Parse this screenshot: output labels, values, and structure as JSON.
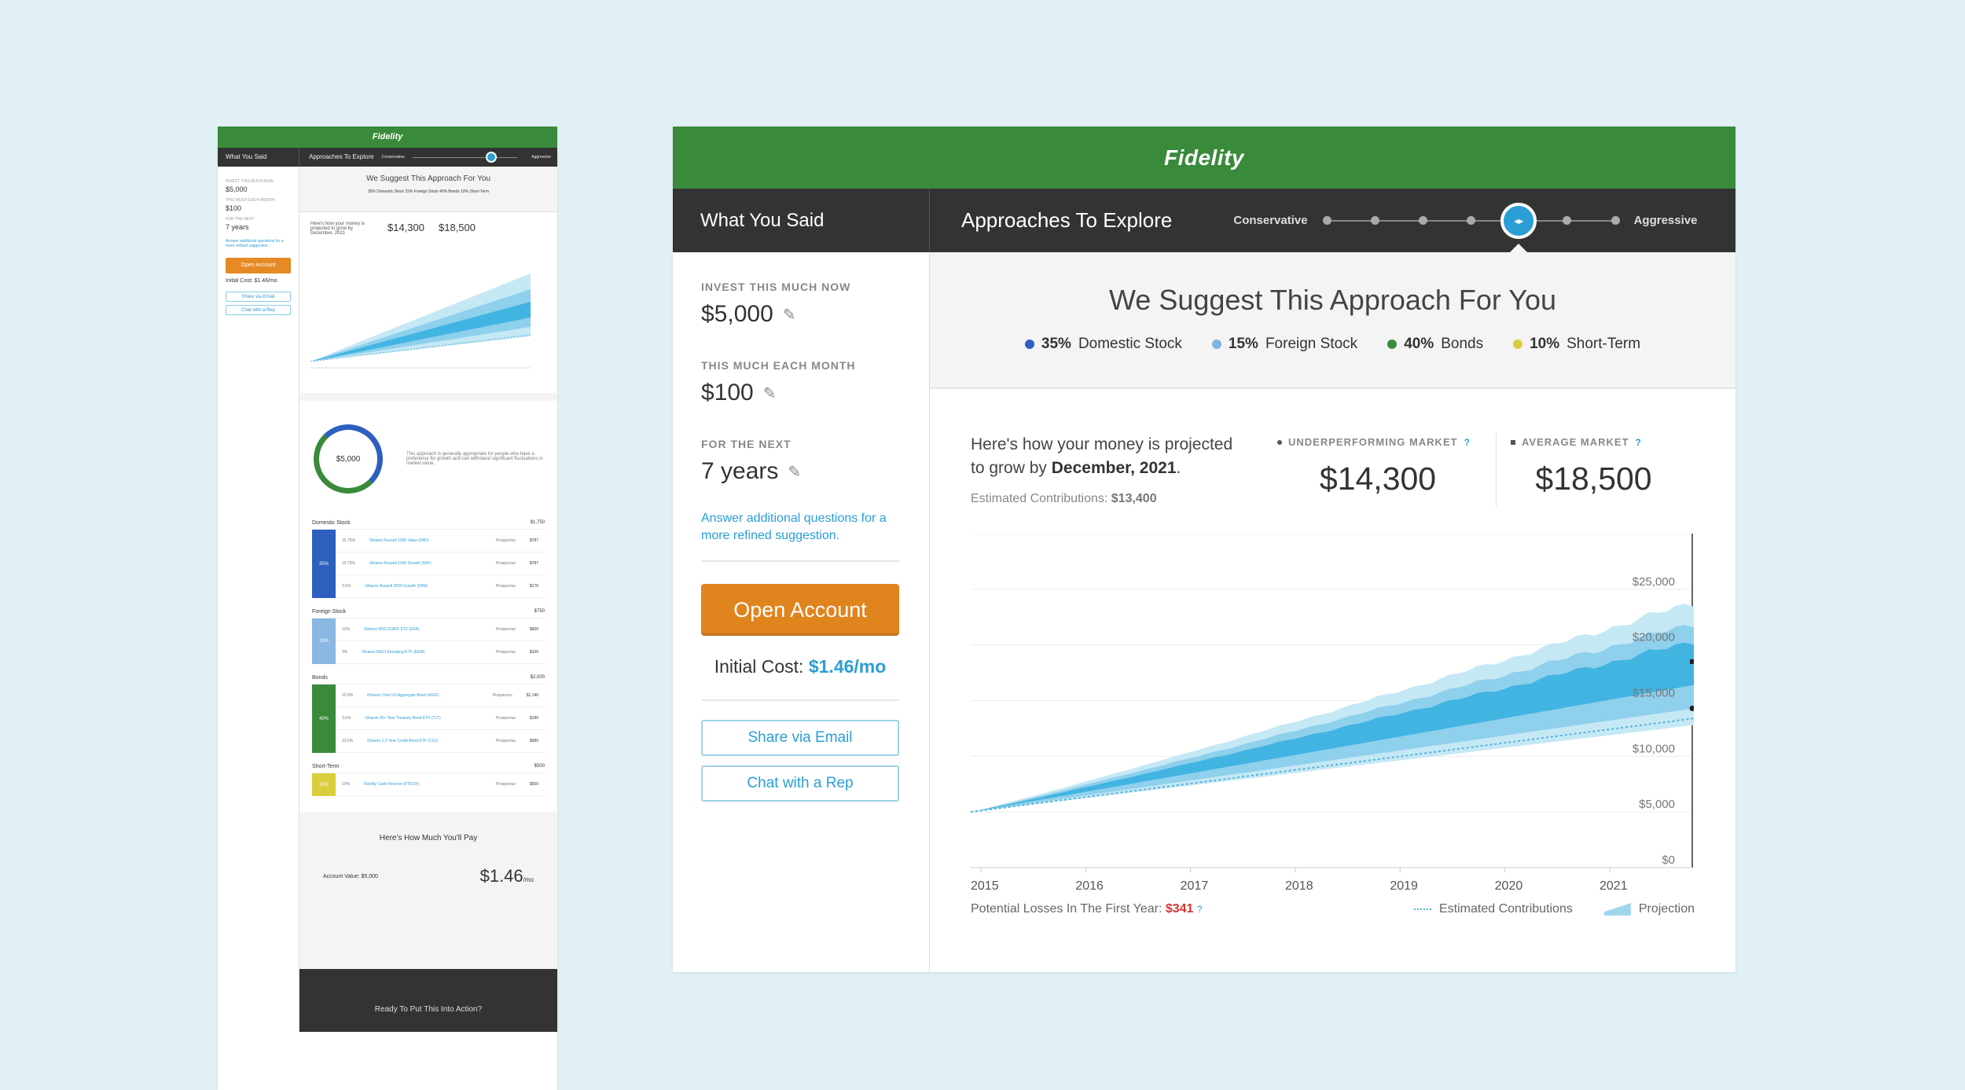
{
  "brand": "Fidelity",
  "mini": {
    "nav_left": "What You Said",
    "nav_right": "Approaches To Explore",
    "scale_left": "Conservative",
    "scale_right": "Aggressive",
    "invest_label": "Invest this much now",
    "invest_value": "$5,000",
    "monthly_label": "This much each month",
    "monthly_value": "$100",
    "term_label": "For the next",
    "term_value": "7 years",
    "more_link": "Answer additional questions for a more refined suggestion.",
    "open_button": "Open Account",
    "initial_cost": "Initial Cost: $1.46/mo",
    "share_button": "Share via Email",
    "chat_button": "Chat with a Rep",
    "suggest_title": "We Suggest This Approach For You",
    "alloc_line": "35% Domestic Stock   15% Foreign Stock   40% Bonds   10% Short-Term",
    "proj_text": "Here's how your money is projected to grow by December, 2021",
    "under_value": "$14,300",
    "avg_value": "$18,500",
    "donut_value": "$5,000",
    "donut_text": "This approach is generally appropriate for people who have a preference for growth and can withstand significant fluctuations in market value.",
    "groups": [
      {
        "name": "Domestic Stock",
        "total": "$1,750",
        "pct": "35%",
        "color": "#2d5fbe",
        "rows": [
          {
            "pct": "15.75%",
            "fund": "iShares Russell 1000 Value (IWD)",
            "tag": "Prospectus",
            "amt": "$787"
          },
          {
            "pct": "15.75%",
            "fund": "iShares Russell 1000 Growth (IWF)",
            "tag": "Prospectus",
            "amt": "$787"
          },
          {
            "pct": "3.5%",
            "fund": "iShares Russell 2000 Growth (IWM)",
            "tag": "Prospectus",
            "amt": "$175"
          }
        ]
      },
      {
        "name": "Foreign Stock",
        "total": "$750",
        "pct": "15%",
        "color": "#8ab8e3",
        "rows": [
          {
            "pct": "12%",
            "fund": "iShares MSCI EAFE ETF (EFA)",
            "tag": "Prospectus",
            "amt": "$600"
          },
          {
            "pct": "3%",
            "fund": "iShares MSCI Emerging ETF (EEM)",
            "tag": "Prospectus",
            "amt": "$150"
          }
        ]
      },
      {
        "name": "Bonds",
        "total": "$2,000",
        "pct": "40%",
        "color": "#3a8a3c",
        "rows": [
          {
            "pct": "22.8%",
            "fund": "iShares Core US Aggregate Bond (AGG)",
            "tag": "Prospectus",
            "amt": "$1,140"
          },
          {
            "pct": "3.6%",
            "fund": "iShares 20+ Year Treasury Bond ETF (TLT)",
            "tag": "Prospectus",
            "amt": "$180"
          },
          {
            "pct": "13.6%",
            "fund": "iShares 1-3 Year Credit Bond ETF (CSJ)",
            "tag": "Prospectus",
            "amt": "$680"
          }
        ]
      },
      {
        "name": "Short-Term",
        "total": "$500",
        "pct": "10%",
        "color": "#d9cf3d",
        "rows": [
          {
            "pct": "10%",
            "fund": "Fidelity Cash Reserve (FTEXX)",
            "tag": "Prospectus",
            "amt": "$500"
          }
        ]
      }
    ],
    "pay_title": "Here's How Much You'll Pay",
    "pay_account": "Account Value: $5,000",
    "pay_price": "$1.46",
    "pay_unit": "/mo",
    "dark_title": "Ready To Put This Into Action?"
  },
  "nav": {
    "what_you_said": "What You Said",
    "approaches": "Approaches To Explore",
    "conservative": "Conservative",
    "aggressive": "Aggressive",
    "risk_level_index": 4,
    "risk_steps": 7
  },
  "inputs": {
    "invest_label": "Invest this much now",
    "invest_value": "$5,000",
    "monthly_label": "This much each month",
    "monthly_value": "$100",
    "term_label": "For the next",
    "term_value": "7 years",
    "more_link": "Answer additional questions for a more refined suggestion."
  },
  "actions": {
    "open_account": "Open Account",
    "initial_cost_label": "Initial Cost:",
    "initial_cost_value": "$1.46/mo",
    "share_email": "Share via Email",
    "chat_rep": "Chat with a Rep"
  },
  "suggestion": {
    "title": "We Suggest This Approach For You",
    "allocations": [
      {
        "pct": "35%",
        "name": "Domestic Stock",
        "color": "#2d5fbe"
      },
      {
        "pct": "15%",
        "name": "Foreign Stock",
        "color": "#7fb4e0"
      },
      {
        "pct": "40%",
        "name": "Bonds",
        "color": "#3a8a3c"
      },
      {
        "pct": "10%",
        "name": "Short-Term",
        "color": "#d9cf3d"
      }
    ]
  },
  "projection": {
    "text_1": "Here's how your money is projected",
    "text_2": "to grow by",
    "date": "December, 2021",
    "est_label": "Estimated Contributions:",
    "est_value": "$13,400",
    "under_label": "UNDERPERFORMING MARKET",
    "under_value": "$14,300",
    "avg_label": "AVERAGE MARKET",
    "avg_value": "$18,500",
    "help": "?",
    "losses_label": "Potential Losses In The First Year:",
    "losses_value": "$341",
    "legend_est": "Estimated Contributions",
    "legend_proj": "Projection"
  },
  "chart_data": {
    "type": "area",
    "x_labels": [
      "2015",
      "2016",
      "2017",
      "2018",
      "2019",
      "2020",
      "2021"
    ],
    "y_labels": [
      "$0",
      "$5,000",
      "$10,000",
      "$15,000",
      "$20,000",
      "$25,000"
    ],
    "ylim": [
      0,
      30000
    ],
    "xlim": [
      2015,
      2021.9
    ],
    "start_value": 5000,
    "end_contributions": 13400,
    "end_underperforming": 14300,
    "end_average": 18500,
    "bands": [
      {
        "name": "outer",
        "low_end": 12800,
        "high_end": 23800,
        "color": "#c5e8f5"
      },
      {
        "name": "middle",
        "low_end": 14300,
        "high_end": 21900,
        "color": "#8fd0ec"
      },
      {
        "name": "inner",
        "low_end": 16400,
        "high_end": 20300,
        "color": "#41b4e2"
      }
    ],
    "contribution_color": "#55b3d8",
    "grid": true
  }
}
